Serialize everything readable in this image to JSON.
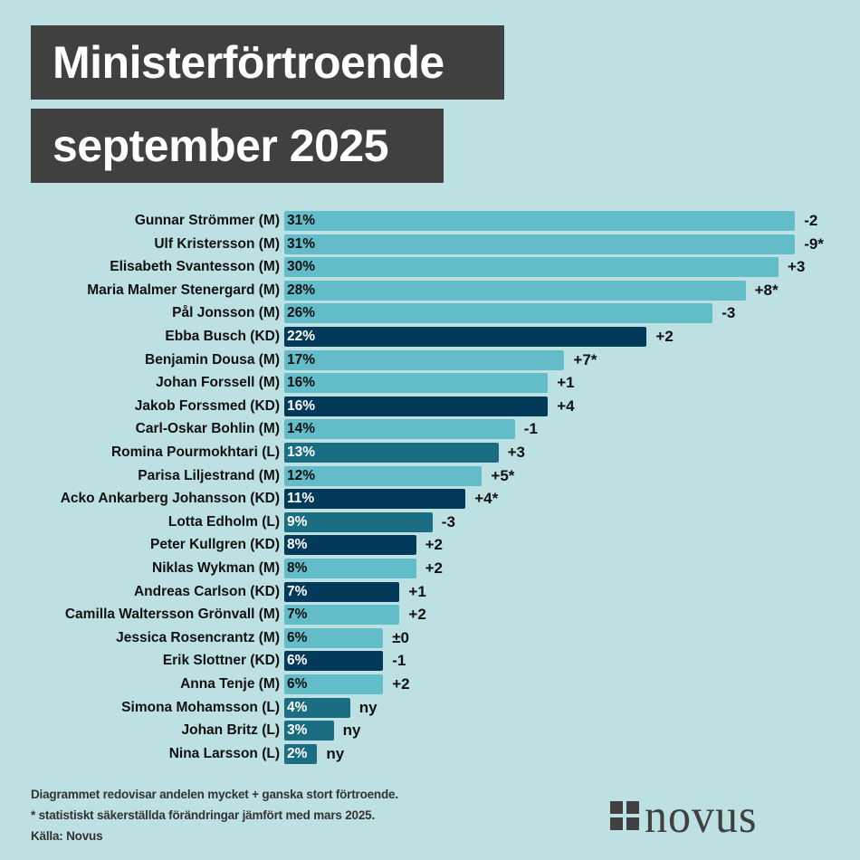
{
  "title": {
    "line1": "Ministerförtroende",
    "line2": "september 2025"
  },
  "colors": {
    "background": "#bde0e2",
    "title_box": "#404040",
    "party": {
      "M": "#62bdc9",
      "KD": "#033a5a",
      "L": "#1b6d82"
    },
    "value_text": {
      "M": "#111111",
      "KD": "#ffffff",
      "L": "#ffffff"
    }
  },
  "chart_data": {
    "type": "bar",
    "orientation": "horizontal",
    "title": "Ministerförtroende september 2025",
    "xlabel": "",
    "ylabel": "",
    "xlim": [
      0,
      31
    ],
    "grid": false,
    "legend": "none",
    "categories": [
      "Gunnar Strömmer (M)",
      "Ulf Kristersson (M)",
      "Elisabeth Svantesson (M)",
      "Maria Malmer Stenergard (M)",
      "Pål Jonsson (M)",
      "Ebba Busch (KD)",
      "Benjamin Dousa (M)",
      "Johan Forssell (M)",
      "Jakob Forssmed (KD)",
      "Carl-Oskar Bohlin (M)",
      "Romina Pourmokhtari (L)",
      "Parisa Liljestrand (M)",
      "Acko Ankarberg Johansson (KD)",
      "Lotta Edholm (L)",
      "Peter Kullgren (KD)",
      "Niklas Wykman (M)",
      "Andreas Carlson (KD)",
      "Camilla Waltersson Grönvall (M)",
      "Jessica Rosencrantz (M)",
      "Erik Slottner (KD)",
      "Anna Tenje (M)",
      "Simona Mohamsson (L)",
      "Johan Britz (L)",
      "Nina Larsson (L)"
    ],
    "values": [
      31,
      31,
      30,
      28,
      26,
      22,
      17,
      16,
      16,
      14,
      13,
      12,
      11,
      9,
      8,
      8,
      7,
      7,
      6,
      6,
      6,
      4,
      3,
      2
    ],
    "value_labels": [
      "31%",
      "31%",
      "30%",
      "28%",
      "26%",
      "22%",
      "17%",
      "16%",
      "16%",
      "14%",
      "13%",
      "12%",
      "11%",
      "9%",
      "8%",
      "8%",
      "7%",
      "7%",
      "6%",
      "6%",
      "6%",
      "4%",
      "3%",
      "2%"
    ],
    "parties": [
      "M",
      "M",
      "M",
      "M",
      "M",
      "KD",
      "M",
      "M",
      "KD",
      "M",
      "L",
      "M",
      "KD",
      "L",
      "KD",
      "M",
      "KD",
      "M",
      "M",
      "KD",
      "M",
      "L",
      "L",
      "L"
    ],
    "changes": [
      "-2",
      "-9*",
      "+3",
      "+8*",
      "-3",
      "+2",
      "+7*",
      "+1",
      "+4",
      "-1",
      "+3",
      "+5*",
      "+4*",
      "-3",
      "+2",
      "+2",
      "+1",
      "+2",
      "±0",
      "-1",
      "+2",
      "ny",
      "ny",
      "ny"
    ]
  },
  "footnotes": [
    "Diagrammet redovisar andelen mycket + ganska stort förtroende.",
    "* statistiskt säkerställda förändringar jämfört med mars 2025.",
    "Källa: Novus"
  ],
  "logo": {
    "text": "novus",
    "icon": "four-squares-mark"
  }
}
